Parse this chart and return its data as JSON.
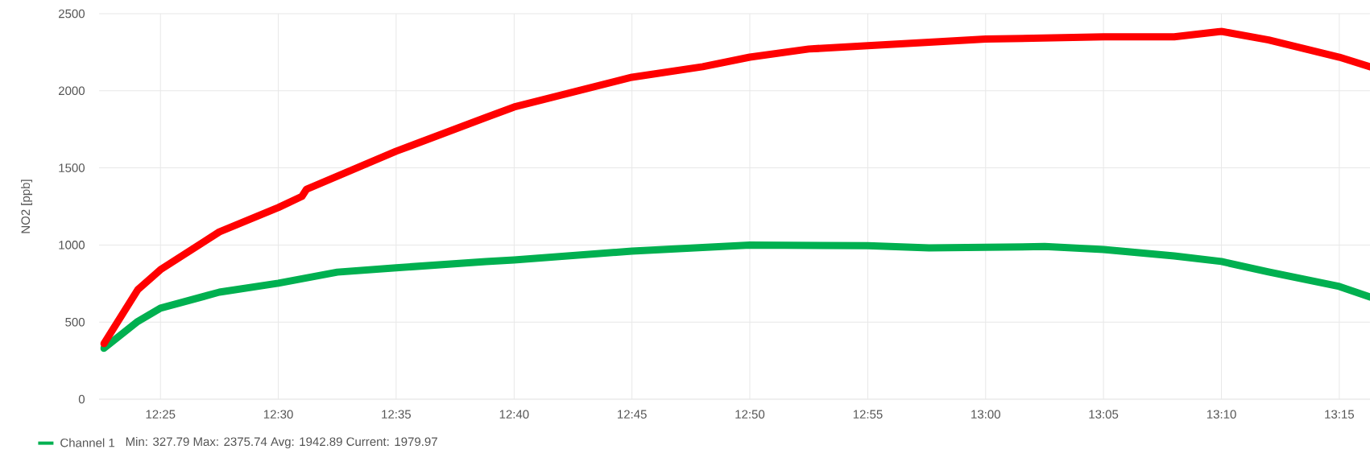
{
  "chart_data": {
    "type": "line",
    "ylabel": "NO2 [ppb]",
    "xlim": [
      12.3733,
      13.2717
    ],
    "ylim": [
      0,
      2500
    ],
    "xticks": [
      {
        "value": 12.4167,
        "label": "12:25"
      },
      {
        "value": 12.5,
        "label": "12:30"
      },
      {
        "value": 12.5833,
        "label": "12:35"
      },
      {
        "value": 12.6667,
        "label": "12:40"
      },
      {
        "value": 12.75,
        "label": "12:45"
      },
      {
        "value": 12.8333,
        "label": "12:50"
      },
      {
        "value": 12.9167,
        "label": "12:55"
      },
      {
        "value": 13.0,
        "label": "13:00"
      },
      {
        "value": 13.0833,
        "label": "13:05"
      },
      {
        "value": 13.1667,
        "label": "13:10"
      },
      {
        "value": 13.25,
        "label": "13:15"
      }
    ],
    "yticks": [
      0,
      500,
      1000,
      1500,
      2000,
      2500
    ],
    "grid": true,
    "legend": "bottom left",
    "series": [
      {
        "name": "Channel 1",
        "color": "#00b050",
        "x": [
          12.3767,
          12.4,
          12.4167,
          12.4583,
          12.5,
          12.5417,
          12.5833,
          12.6467,
          12.6667,
          12.75,
          12.8333,
          12.9167,
          12.96,
          13.0,
          13.0417,
          13.0833,
          13.1333,
          13.1667,
          13.2,
          13.25,
          13.2717
        ],
        "values": [
          330,
          500,
          590,
          694,
          752,
          824,
          852,
          893,
          903,
          960,
          1000,
          995,
          981,
          985,
          990,
          971,
          929,
          893,
          825,
          731,
          663
        ]
      },
      {
        "color": "#ff0000",
        "x": [
          12.3767,
          12.4007,
          12.4167,
          12.4583,
          12.5,
          12.5167,
          12.52,
          12.5833,
          12.6467,
          12.6667,
          12.75,
          12.8,
          12.8333,
          12.875,
          12.9167,
          12.96,
          13.0,
          13.0833,
          13.1333,
          13.1667,
          13.2,
          13.25,
          13.2717
        ],
        "values": [
          360,
          710,
          840,
          1085,
          1243,
          1315,
          1362,
          1608,
          1827,
          1895,
          2088,
          2156,
          2218,
          2271,
          2292,
          2315,
          2335,
          2350,
          2350,
          2385,
          2330,
          2218,
          2156
        ]
      }
    ],
    "annotations": [
      "Min: 327.79  Max: 2375.74  Avg: 1942.89  Current: 1979.97"
    ]
  }
}
